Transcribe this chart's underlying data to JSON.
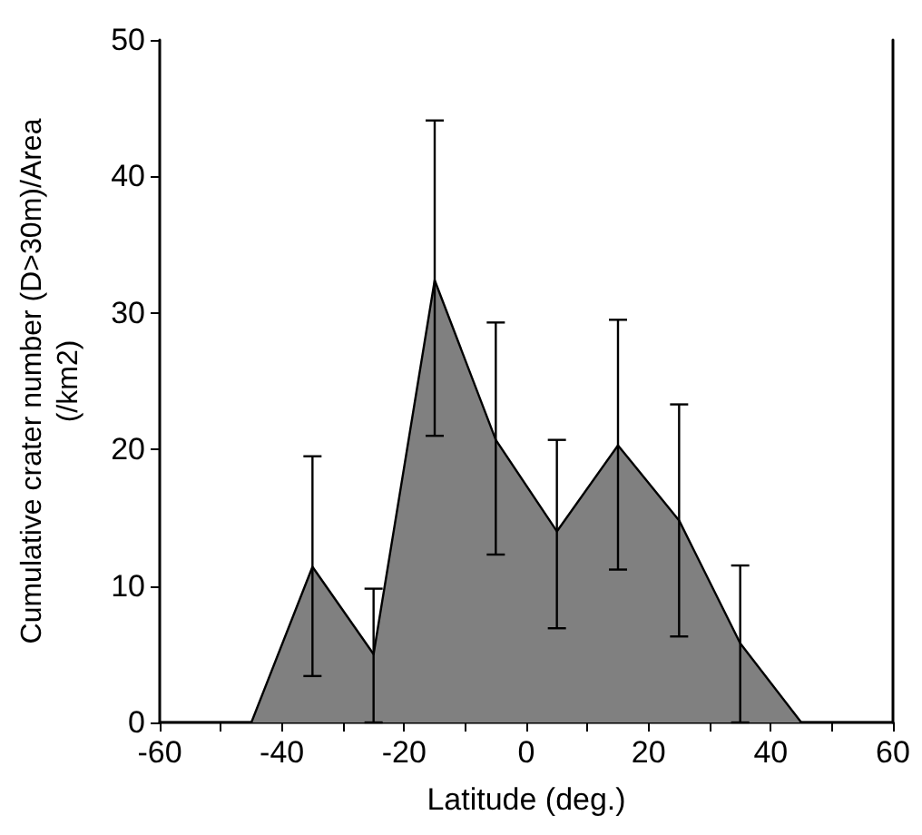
{
  "chart_data": {
    "type": "area",
    "xlabel": "Latitude (deg.)",
    "ylabel": "Cumulative crater number (D>30m)/Area\n(/km2)",
    "x": [
      -60,
      -45,
      -35,
      -25,
      -15,
      -5,
      5,
      15,
      25,
      35,
      45,
      60
    ],
    "series": [
      {
        "color": "#808080",
        "values": [
          0,
          0,
          11.4,
          5.0,
          32.4,
          20.7,
          14.0,
          20.3,
          14.8,
          5.8,
          0,
          0
        ],
        "errors": [
          null,
          null,
          [
            3.4,
            19.5
          ],
          [
            0,
            9.8
          ],
          [
            21.0,
            44.1
          ],
          [
            12.3,
            29.3
          ],
          [
            6.9,
            20.7
          ],
          [
            11.2,
            29.5
          ],
          [
            6.3,
            23.3
          ],
          [
            0,
            11.5
          ],
          null,
          null
        ]
      }
    ],
    "xlim": [
      -60,
      60
    ],
    "xticks": [
      -60,
      {
        "value": -50,
        "label": null
      },
      -40,
      {
        "value": -30,
        "label": null
      },
      -20,
      {
        "value": -10,
        "label": null
      },
      0,
      {
        "value": 10,
        "label": null
      },
      20,
      {
        "value": 30,
        "label": null
      },
      40,
      {
        "value": 50,
        "label": null
      },
      60
    ],
    "ylim": [
      0,
      50
    ],
    "yticks": [
      0,
      10,
      20,
      30,
      40,
      50
    ],
    "marker": "none",
    "line_style": "solid"
  }
}
